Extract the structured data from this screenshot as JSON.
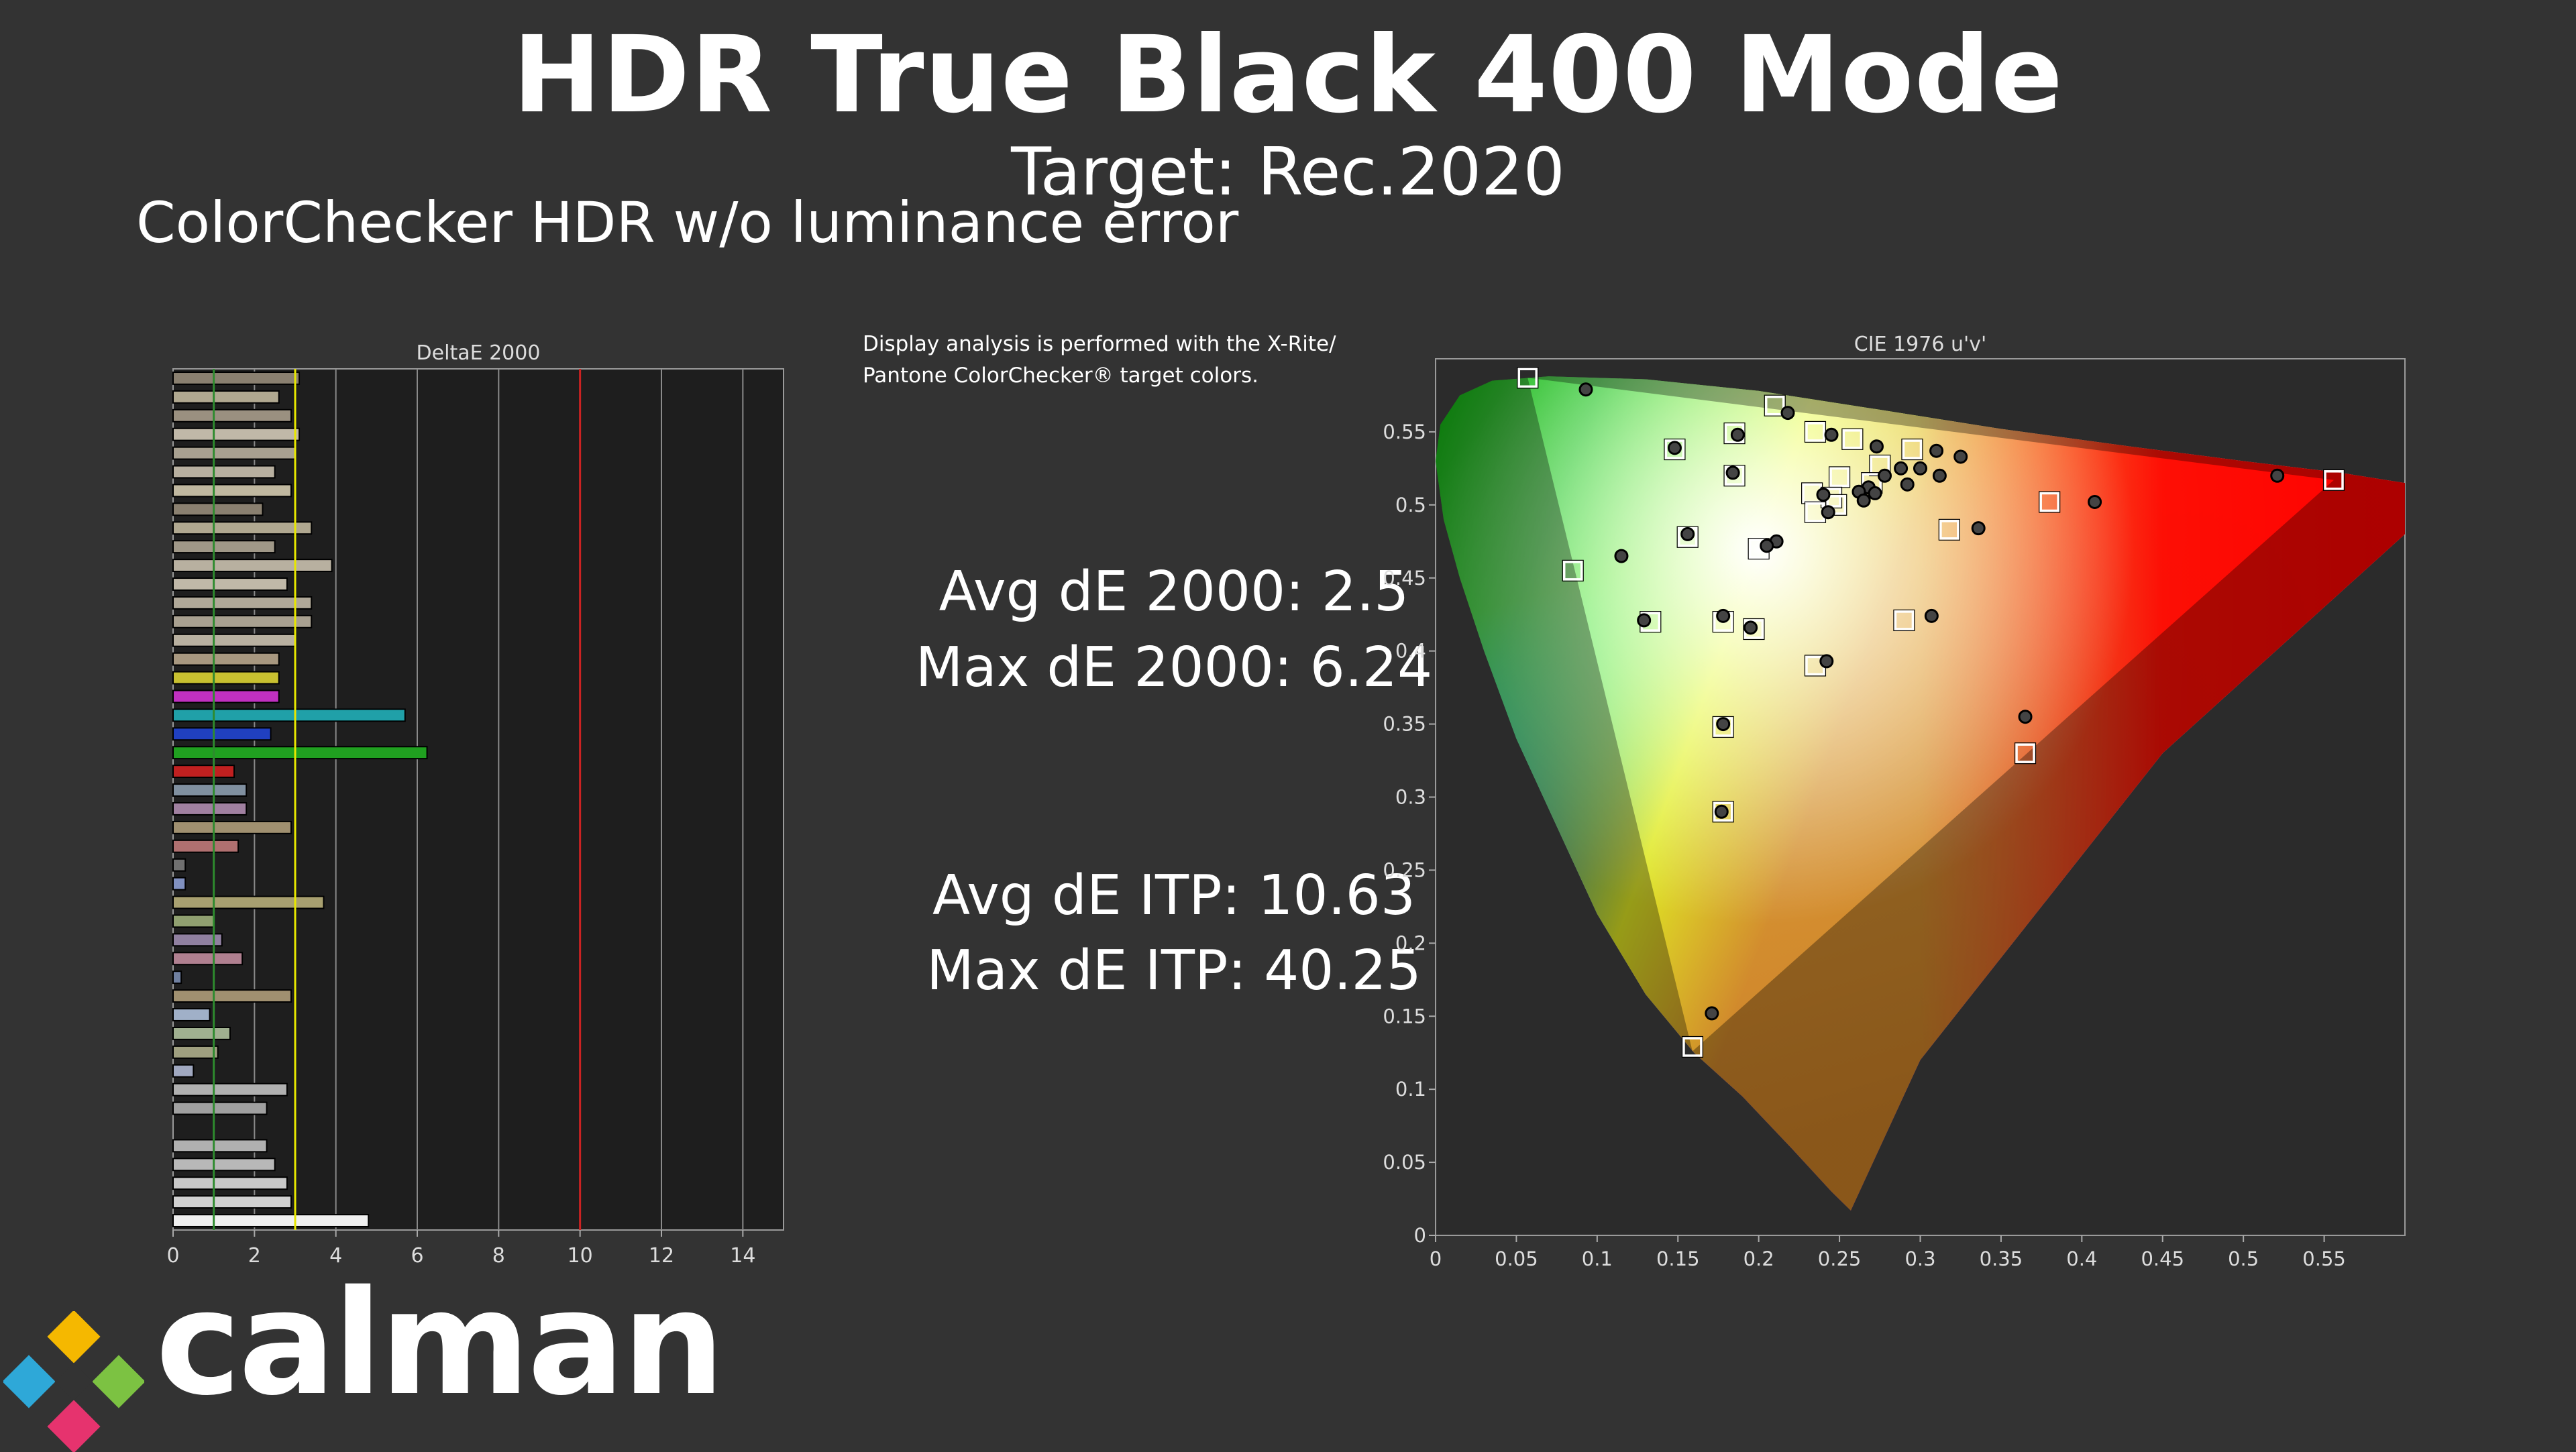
{
  "header": {
    "title": "HDR True Black 400 Mode",
    "subtitle": "Target: Rec.2020",
    "section_heading": "ColorChecker HDR w/o luminance error"
  },
  "note": {
    "line1": "Display analysis is performed with the X-Rite/",
    "line2": "Pantone ColorChecker® target colors."
  },
  "stats": {
    "avg_de2000": "Avg dE 2000: 2.5",
    "max_de2000": "Max dE 2000: 6.24",
    "avg_deitp": "Avg dE ITP: 10.63",
    "max_deitp": "Max dE ITP: 40.25"
  },
  "logo": {
    "text": "calman"
  },
  "chart_data": [
    {
      "type": "bar",
      "orientation": "horizontal",
      "title": "DeltaE 2000",
      "xlim": [
        0,
        15
      ],
      "xticks": [
        0,
        2,
        4,
        6,
        8,
        10,
        12,
        14
      ],
      "thresholds": [
        {
          "value": 1,
          "color": "#2e8b2e"
        },
        {
          "value": 3,
          "color": "#e6e600"
        },
        {
          "value": 10,
          "color": "#cc2222"
        }
      ],
      "values": [
        3.1,
        2.6,
        2.9,
        3.1,
        3.0,
        2.5,
        2.9,
        2.2,
        3.4,
        2.5,
        3.9,
        2.8,
        3.4,
        3.4,
        3.0,
        2.6,
        2.6,
        2.6,
        5.7,
        2.4,
        6.24,
        1.5,
        1.8,
        1.8,
        2.9,
        1.6,
        0.3,
        0.3,
        3.7,
        1.0,
        1.2,
        1.7,
        0.2,
        2.9,
        0.9,
        1.4,
        1.1,
        0.5,
        2.8,
        2.3,
        0.0,
        2.3,
        2.5,
        2.8,
        2.9,
        4.8
      ],
      "colors": [
        "#8a8070",
        "#b0a890",
        "#9a9080",
        "#c0b8a8",
        "#a8a090",
        "#b8b0a0",
        "#c0b8a0",
        "#8a8070",
        "#b0a890",
        "#a09888",
        "#b8b0a0",
        "#c0b8a8",
        "#b0a898",
        "#a8a090",
        "#b8b0a0",
        "#a89880",
        "#c8c030",
        "#c030c0",
        "#20a0a8",
        "#2040c0",
        "#20a020",
        "#c02020",
        "#8090a0",
        "#a080a0",
        "#a09070",
        "#b07070",
        "#707070",
        "#8090c0",
        "#a8a070",
        "#90a070",
        "#9080a0",
        "#b08090",
        "#7080a0",
        "#a09070",
        "#a0b0c8",
        "#a0b090",
        "#a0a080",
        "#a0a8c0",
        "#b0b0b0",
        "#a0a0a0",
        "#606060",
        "#b0b0b0",
        "#b8b8b8",
        "#c8c8c8",
        "#d0d0d0",
        "#f0f0f0"
      ]
    },
    {
      "type": "scatter",
      "title": "CIE 1976 u'v'",
      "xlim": [
        0,
        0.6
      ],
      "ylim": [
        0,
        0.6
      ],
      "xticks": [
        "0",
        "0.05",
        "0.1",
        "0.15",
        "0.2",
        "0.25",
        "0.3",
        "0.35",
        "0.4",
        "0.45",
        "0.5",
        "0.55"
      ],
      "yticks": [
        "0",
        "0.05",
        "0.1",
        "0.15",
        "0.2",
        "0.25",
        "0.3",
        "0.35",
        "0.4",
        "0.45",
        "0.5",
        "0.55"
      ],
      "gamut_triangle": [
        [
          0.556,
          0.517
        ],
        [
          0.057,
          0.587
        ],
        [
          0.159,
          0.126
        ]
      ],
      "series": [
        {
          "name": "target",
          "marker": "square",
          "points": [
            [
              0.057,
              0.587
            ],
            [
              0.21,
              0.568
            ],
            [
              0.235,
              0.55
            ],
            [
              0.258,
              0.545
            ],
            [
              0.185,
              0.549
            ],
            [
              0.148,
              0.538
            ],
            [
              0.185,
              0.52
            ],
            [
              0.295,
              0.538
            ],
            [
              0.275,
              0.527
            ],
            [
              0.25,
              0.519
            ],
            [
              0.233,
              0.508
            ],
            [
              0.245,
              0.505
            ],
            [
              0.27,
              0.515
            ],
            [
              0.248,
              0.5
            ],
            [
              0.235,
              0.495
            ],
            [
              0.38,
              0.502
            ],
            [
              0.318,
              0.483
            ],
            [
              0.156,
              0.478
            ],
            [
              0.2,
              0.47
            ],
            [
              0.085,
              0.455
            ],
            [
              0.133,
              0.42
            ],
            [
              0.178,
              0.42
            ],
            [
              0.197,
              0.415
            ],
            [
              0.29,
              0.421
            ],
            [
              0.235,
              0.39
            ],
            [
              0.178,
              0.348
            ],
            [
              0.365,
              0.33
            ],
            [
              0.178,
              0.29
            ],
            [
              0.159,
              0.129
            ],
            [
              0.556,
              0.517
            ]
          ]
        },
        {
          "name": "measured",
          "marker": "circle",
          "points": [
            [
              0.093,
              0.579
            ],
            [
              0.218,
              0.563
            ],
            [
              0.245,
              0.548
            ],
            [
              0.187,
              0.548
            ],
            [
              0.148,
              0.539
            ],
            [
              0.273,
              0.54
            ],
            [
              0.31,
              0.537
            ],
            [
              0.325,
              0.533
            ],
            [
              0.184,
              0.522
            ],
            [
              0.288,
              0.525
            ],
            [
              0.3,
              0.525
            ],
            [
              0.278,
              0.52
            ],
            [
              0.312,
              0.52
            ],
            [
              0.292,
              0.514
            ],
            [
              0.268,
              0.512
            ],
            [
              0.262,
              0.509
            ],
            [
              0.272,
              0.508
            ],
            [
              0.24,
              0.507
            ],
            [
              0.265,
              0.503
            ],
            [
              0.243,
              0.495
            ],
            [
              0.408,
              0.502
            ],
            [
              0.521,
              0.52
            ],
            [
              0.336,
              0.484
            ],
            [
              0.156,
              0.48
            ],
            [
              0.211,
              0.475
            ],
            [
              0.205,
              0.472
            ],
            [
              0.115,
              0.465
            ],
            [
              0.178,
              0.424
            ],
            [
              0.129,
              0.421
            ],
            [
              0.195,
              0.416
            ],
            [
              0.307,
              0.424
            ],
            [
              0.242,
              0.393
            ],
            [
              0.178,
              0.35
            ],
            [
              0.365,
              0.355
            ],
            [
              0.177,
              0.29
            ],
            [
              0.171,
              0.152
            ]
          ]
        }
      ]
    }
  ]
}
